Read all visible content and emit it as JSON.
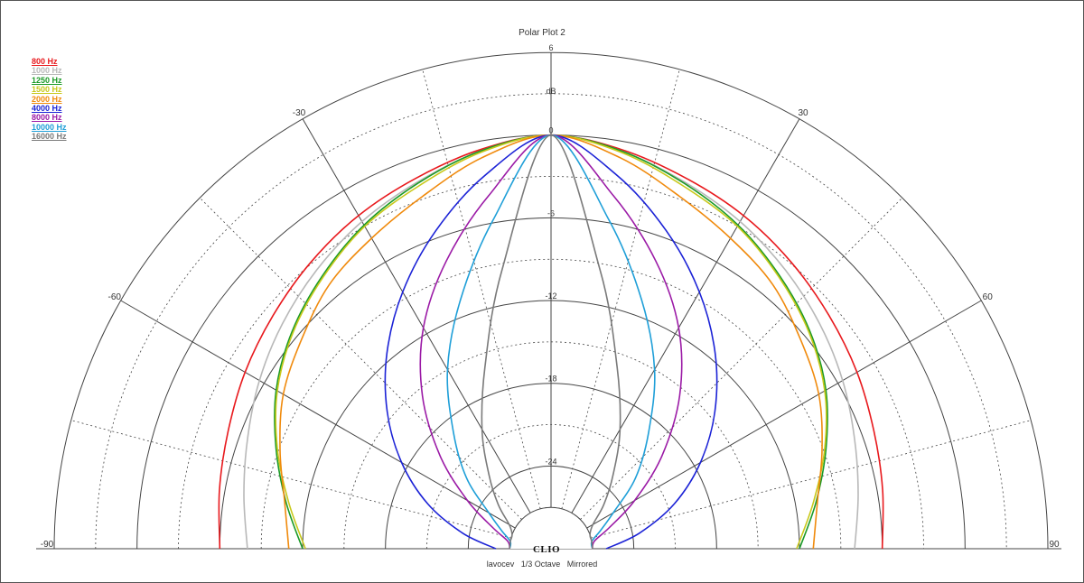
{
  "header": {
    "title": "Polar Plot 2"
  },
  "footer": {
    "caption": "lavocev   1/3 Octave   Mirrored"
  },
  "brand": {
    "logo_text": "CLIO"
  },
  "colors": {
    "background": "#ffffff",
    "grid": "#444444",
    "frame": "#555555"
  },
  "chart_data": {
    "type": "polar",
    "title": "Polar Plot 2",
    "unit_label": "dB",
    "angle_range": [
      -90,
      90
    ],
    "angle_ticks": [
      -90,
      -60,
      -30,
      0,
      30,
      60,
      90
    ],
    "radial_range_db": [
      -30,
      6
    ],
    "radial_ticks": [
      6,
      0,
      -6,
      -12,
      -18,
      -24
    ],
    "mirrored": true,
    "legend_position": "top-left",
    "series": [
      {
        "name": "800 Hz",
        "color": "#e8191d",
        "angles": [
          0,
          10,
          20,
          30,
          40,
          50,
          60,
          70,
          80,
          90
        ],
        "db": [
          0,
          -0.6,
          -1.4,
          -2.1,
          -2.9,
          -3.7,
          -4.4,
          -5.1,
          -5.6,
          -6.0
        ]
      },
      {
        "name": "1000 Hz",
        "color": "#b8b8b8",
        "angles": [
          0,
          10,
          20,
          30,
          40,
          50,
          60,
          70,
          80,
          90
        ],
        "db": [
          0,
          -0.7,
          -1.7,
          -2.6,
          -3.6,
          -4.6,
          -5.6,
          -6.6,
          -7.4,
          -8.0
        ]
      },
      {
        "name": "1250 Hz",
        "color": "#1a9a26",
        "angles": [
          0,
          10,
          20,
          30,
          40,
          50,
          60,
          70,
          80,
          90
        ],
        "db": [
          0,
          -0.7,
          -1.8,
          -2.9,
          -4.2,
          -5.5,
          -7.0,
          -8.8,
          -10.5,
          -12.0
        ]
      },
      {
        "name": "1500 Hz",
        "color": "#c8c81a",
        "angles": [
          0,
          10,
          20,
          30,
          40,
          50,
          60,
          70,
          80,
          90
        ],
        "db": [
          0,
          -0.8,
          -2.0,
          -3.0,
          -4.3,
          -5.6,
          -7.1,
          -8.9,
          -10.7,
          -12.2
        ]
      },
      {
        "name": "2000 Hz",
        "color": "#f08a0c",
        "angles": [
          0,
          10,
          20,
          30,
          40,
          50,
          60,
          70,
          80,
          90
        ],
        "db": [
          0,
          -1.2,
          -2.8,
          -4.0,
          -5.0,
          -6.4,
          -7.6,
          -9.1,
          -10.4,
          -11.0
        ]
      },
      {
        "name": "4000 Hz",
        "color": "#1b22d6",
        "angles": [
          0,
          10,
          20,
          30,
          40,
          50,
          60,
          70,
          80,
          90
        ],
        "db": [
          0,
          -2.5,
          -5.5,
          -8.5,
          -11.5,
          -14.5,
          -17.5,
          -20.5,
          -23.5,
          -26.0
        ]
      },
      {
        "name": "8000 Hz",
        "color": "#9b1aa6",
        "angles": [
          0,
          10,
          20,
          30,
          40,
          50,
          60,
          70,
          80,
          90
        ],
        "db": [
          0,
          -4.0,
          -7.8,
          -11.5,
          -15.5,
          -19.5,
          -23.0,
          -25.5,
          -26.8,
          -27.0
        ]
      },
      {
        "name": "10000 Hz",
        "color": "#1f9fd8",
        "angles": [
          0,
          10,
          20,
          30,
          40,
          50,
          60,
          70,
          80,
          90
        ],
        "db": [
          0,
          -5.8,
          -10.8,
          -15.0,
          -19.0,
          -22.0,
          -24.8,
          -26.2,
          -27.0,
          -27.0
        ]
      },
      {
        "name": "16000 Hz",
        "color": "#7a7a7a",
        "angles": [
          0,
          10,
          20,
          30,
          40,
          50,
          60,
          70,
          80,
          90
        ],
        "db": [
          0,
          -9.5,
          -16.0,
          -20.0,
          -23.0,
          -25.0,
          -26.5,
          -27.0,
          -27.0,
          -27.0
        ]
      }
    ]
  }
}
